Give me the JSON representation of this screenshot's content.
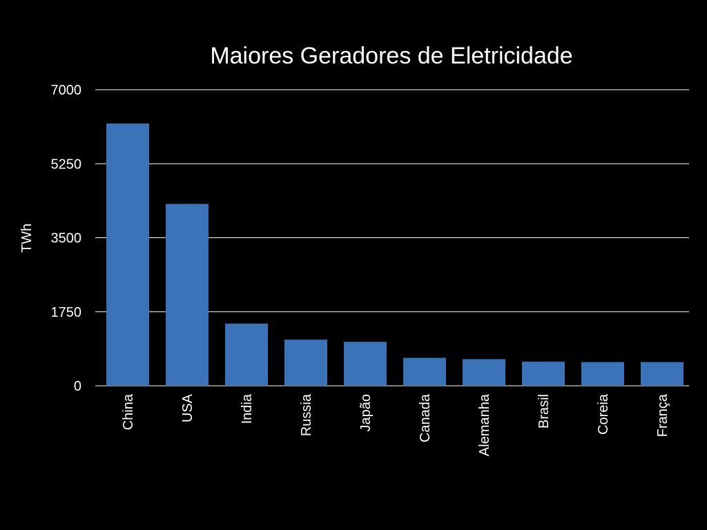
{
  "chart_data": {
    "type": "bar",
    "title": "Maiores Geradores de Eletricidade",
    "xlabel": "",
    "ylabel": "TWh",
    "categories": [
      "China",
      "USA",
      "India",
      "Russia",
      "Japão",
      "Canada",
      "Alemanha",
      "Brasil",
      "Coreia",
      "França"
    ],
    "values": [
      6200,
      4300,
      1470,
      1090,
      1040,
      660,
      630,
      570,
      560,
      560
    ],
    "ylim": [
      0,
      7000
    ],
    "yticks": [
      0,
      1750,
      3500,
      5250,
      7000
    ],
    "ytick_labels": [
      "0",
      "1750",
      "3500",
      "5250",
      "7000"
    ],
    "grid": true,
    "colors": {
      "bar": "#3a73b8",
      "background": "#000000",
      "text": "#ffffff",
      "grid": "#ffffff"
    }
  }
}
